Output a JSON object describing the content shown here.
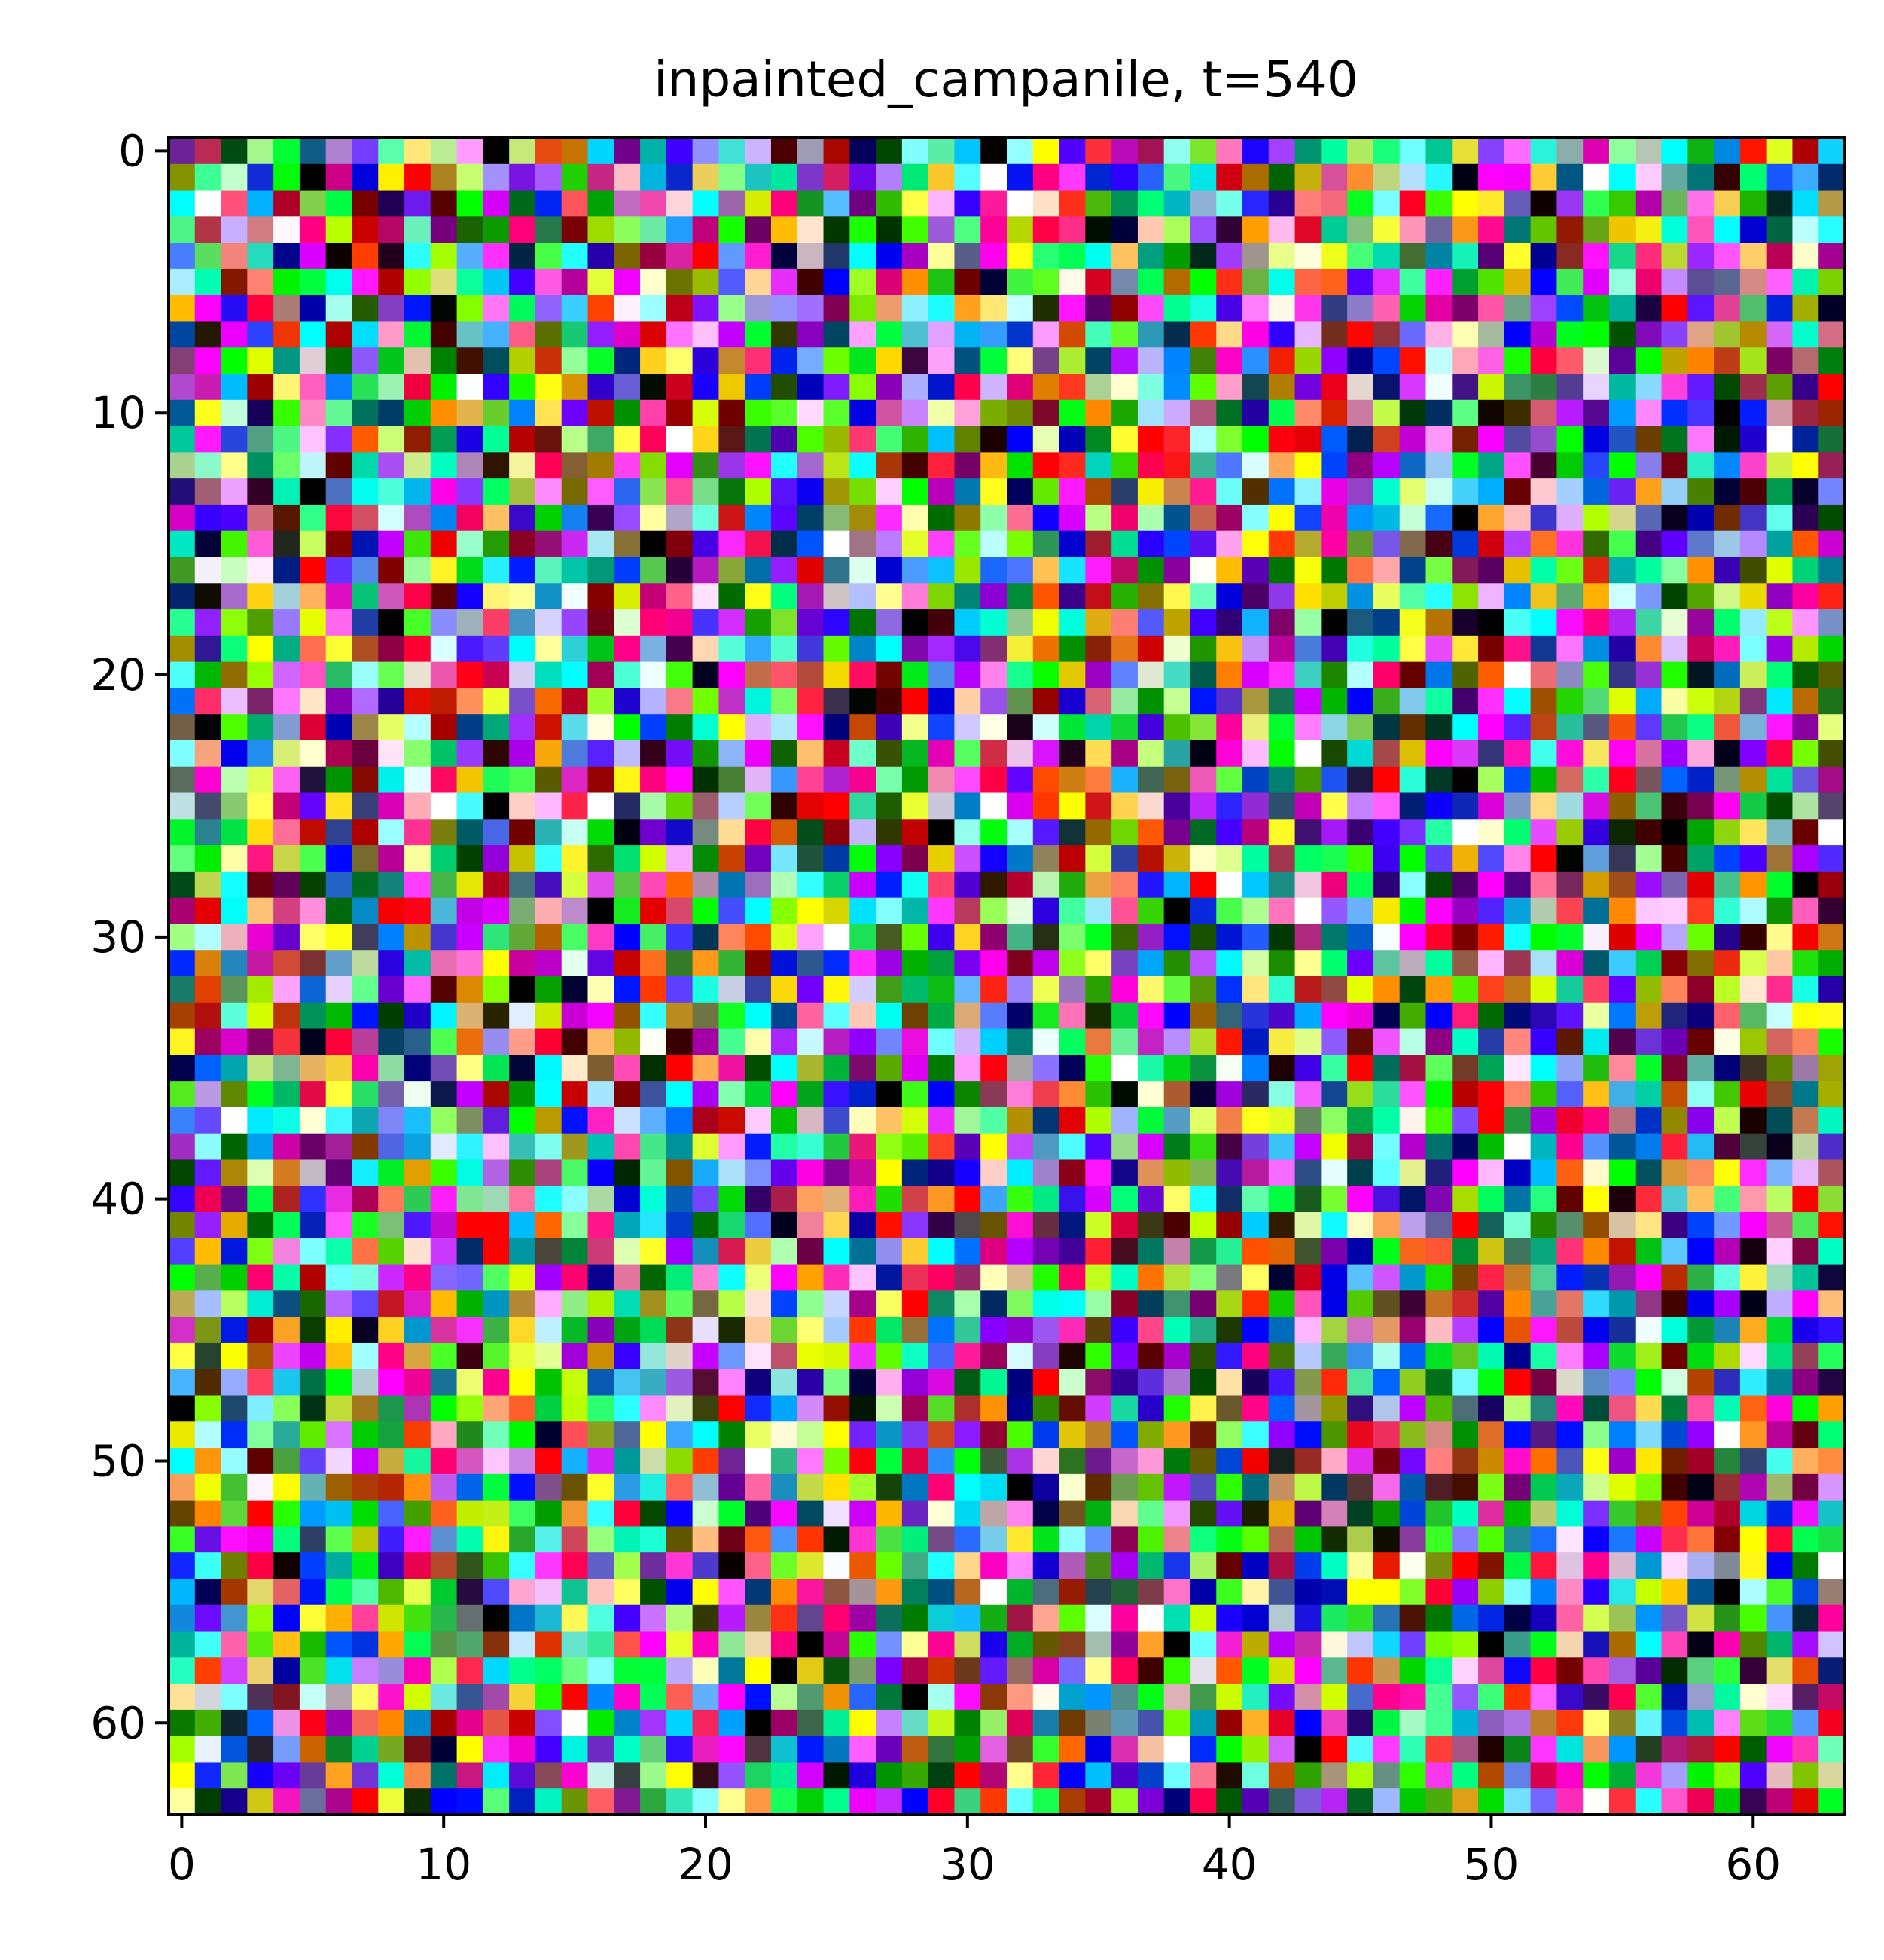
{
  "chart_data": {
    "type": "heatmap",
    "title": "inpainted_campanile, t=540",
    "xlabel": "",
    "ylabel": "",
    "image_shape": [
      64,
      64,
      3
    ],
    "content": "RGB noise image, 64×64 pixels, displayed with imshow",
    "x_ticks": [
      0,
      10,
      20,
      30,
      40,
      50,
      60
    ],
    "y_ticks": [
      0,
      10,
      20,
      30,
      40,
      50,
      60
    ],
    "x_tick_labels": [
      "0",
      "10",
      "20",
      "30",
      "40",
      "50",
      "60"
    ],
    "y_tick_labels": [
      "0",
      "10",
      "20",
      "30",
      "40",
      "50",
      "60"
    ],
    "xlim": [
      -0.5,
      63.5
    ],
    "ylim": [
      63.5,
      -0.5
    ],
    "grid": false,
    "legend": "none"
  }
}
